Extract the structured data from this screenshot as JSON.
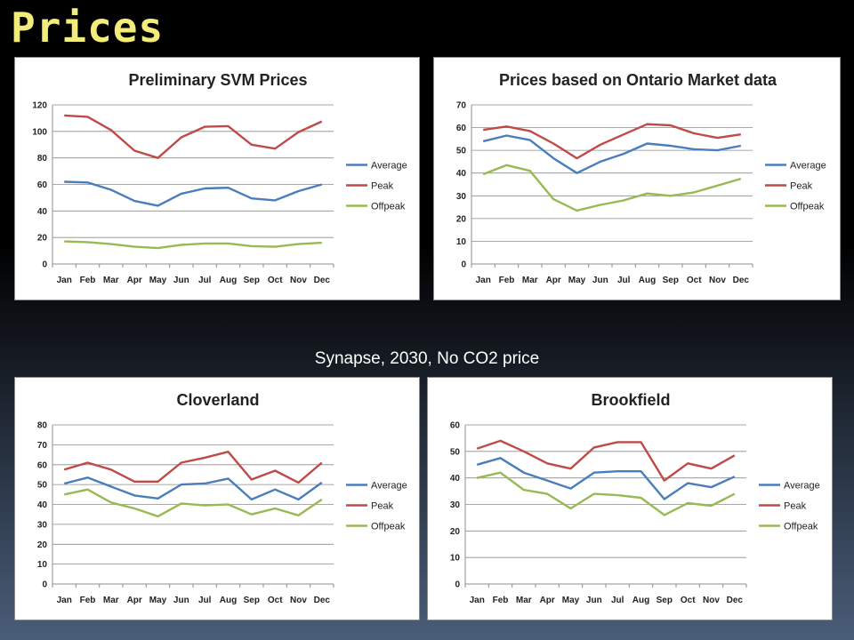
{
  "slide": {
    "title": "Prices",
    "subtitle": "Synapse, 2030, No CO2 price"
  },
  "colors": {
    "average": "#4a7ebb",
    "peak": "#be4b48",
    "offpeak": "#98b954",
    "title": "#f3eb7a"
  },
  "chart_data": [
    {
      "type": "line",
      "title": "Preliminary SVM Prices",
      "categories": [
        "Jan",
        "Feb",
        "Mar",
        "Apr",
        "May",
        "Jun",
        "Jul",
        "Aug",
        "Sep",
        "Oct",
        "Nov",
        "Dec"
      ],
      "ylim": [
        0,
        120
      ],
      "yticks": [
        0,
        20,
        40,
        60,
        80,
        100,
        120
      ],
      "xlabel": "",
      "ylabel": "",
      "grid": true,
      "legend": "right",
      "series": [
        {
          "name": "Average",
          "values": [
            62,
            61.5,
            56,
            47.5,
            44,
            53,
            57,
            57.5,
            49.5,
            48,
            55,
            60
          ]
        },
        {
          "name": "Peak",
          "values": [
            112,
            111,
            101,
            85.5,
            80,
            95.5,
            103.5,
            104,
            90,
            87,
            99.5,
            107.5
          ]
        },
        {
          "name": "Offpeak",
          "values": [
            17,
            16.5,
            15,
            13,
            12,
            14.5,
            15.5,
            15.5,
            13.5,
            13,
            15,
            16
          ]
        }
      ]
    },
    {
      "type": "line",
      "title": "Prices based on Ontario Market data",
      "categories": [
        "Jan",
        "Feb",
        "Mar",
        "Apr",
        "May",
        "Jun",
        "Jul",
        "Aug",
        "Sep",
        "Oct",
        "Nov",
        "Dec"
      ],
      "ylim": [
        0,
        70
      ],
      "yticks": [
        0,
        10,
        20,
        30,
        40,
        50,
        60,
        70
      ],
      "xlabel": "",
      "ylabel": "",
      "grid": true,
      "legend": "right",
      "series": [
        {
          "name": "Average",
          "values": [
            54,
            56.5,
            54.5,
            46.5,
            40,
            45,
            48.5,
            53,
            52,
            50.5,
            50,
            52
          ]
        },
        {
          "name": "Peak",
          "values": [
            59,
            60.5,
            58.5,
            53,
            46.5,
            52.5,
            57,
            61.5,
            61,
            57.5,
            55.5,
            57
          ]
        },
        {
          "name": "Offpeak",
          "values": [
            39.5,
            43.5,
            41,
            28.5,
            23.5,
            26,
            28,
            31,
            30,
            31.5,
            34.5,
            37.5
          ]
        }
      ]
    },
    {
      "type": "line",
      "title": "Cloverland",
      "categories": [
        "Jan",
        "Feb",
        "Mar",
        "Apr",
        "May",
        "Jun",
        "Jul",
        "Aug",
        "Sep",
        "Oct",
        "Nov",
        "Dec"
      ],
      "ylim": [
        0,
        80
      ],
      "yticks": [
        0,
        10,
        20,
        30,
        40,
        50,
        60,
        70,
        80
      ],
      "xlabel": "",
      "ylabel": "",
      "grid": true,
      "legend": "right",
      "series": [
        {
          "name": "Average",
          "values": [
            50.5,
            53.5,
            49,
            44.5,
            43,
            50,
            50.5,
            53,
            42.5,
            47.5,
            42.5,
            51
          ]
        },
        {
          "name": "Peak",
          "values": [
            57.5,
            61,
            57.5,
            51.5,
            51.5,
            61,
            63.5,
            66.5,
            52.5,
            57,
            51,
            61
          ]
        },
        {
          "name": "Offpeak",
          "values": [
            45,
            47.5,
            41,
            38,
            34,
            40.5,
            39.5,
            40,
            35,
            38,
            34.5,
            42.5
          ]
        }
      ]
    },
    {
      "type": "line",
      "title": "Brookfield",
      "categories": [
        "Jan",
        "Feb",
        "Mar",
        "Apr",
        "May",
        "Jun",
        "Jul",
        "Aug",
        "Sep",
        "Oct",
        "Nov",
        "Dec"
      ],
      "ylim": [
        0,
        60
      ],
      "yticks": [
        0,
        10,
        20,
        30,
        40,
        50,
        60
      ],
      "xlabel": "",
      "ylabel": "",
      "grid": true,
      "legend": "right",
      "series": [
        {
          "name": "Average",
          "values": [
            45,
            47.5,
            42,
            39,
            36,
            42,
            42.5,
            42.5,
            32,
            38,
            36.5,
            40.5
          ]
        },
        {
          "name": "Peak",
          "values": [
            51,
            54,
            50,
            45.5,
            43.5,
            51.5,
            53.5,
            53.5,
            39,
            45.5,
            43.5,
            48.5
          ]
        },
        {
          "name": "Offpeak",
          "values": [
            40,
            42,
            35.5,
            34,
            28.5,
            34,
            33.5,
            32.5,
            26,
            30.5,
            29.5,
            34
          ]
        }
      ]
    }
  ]
}
